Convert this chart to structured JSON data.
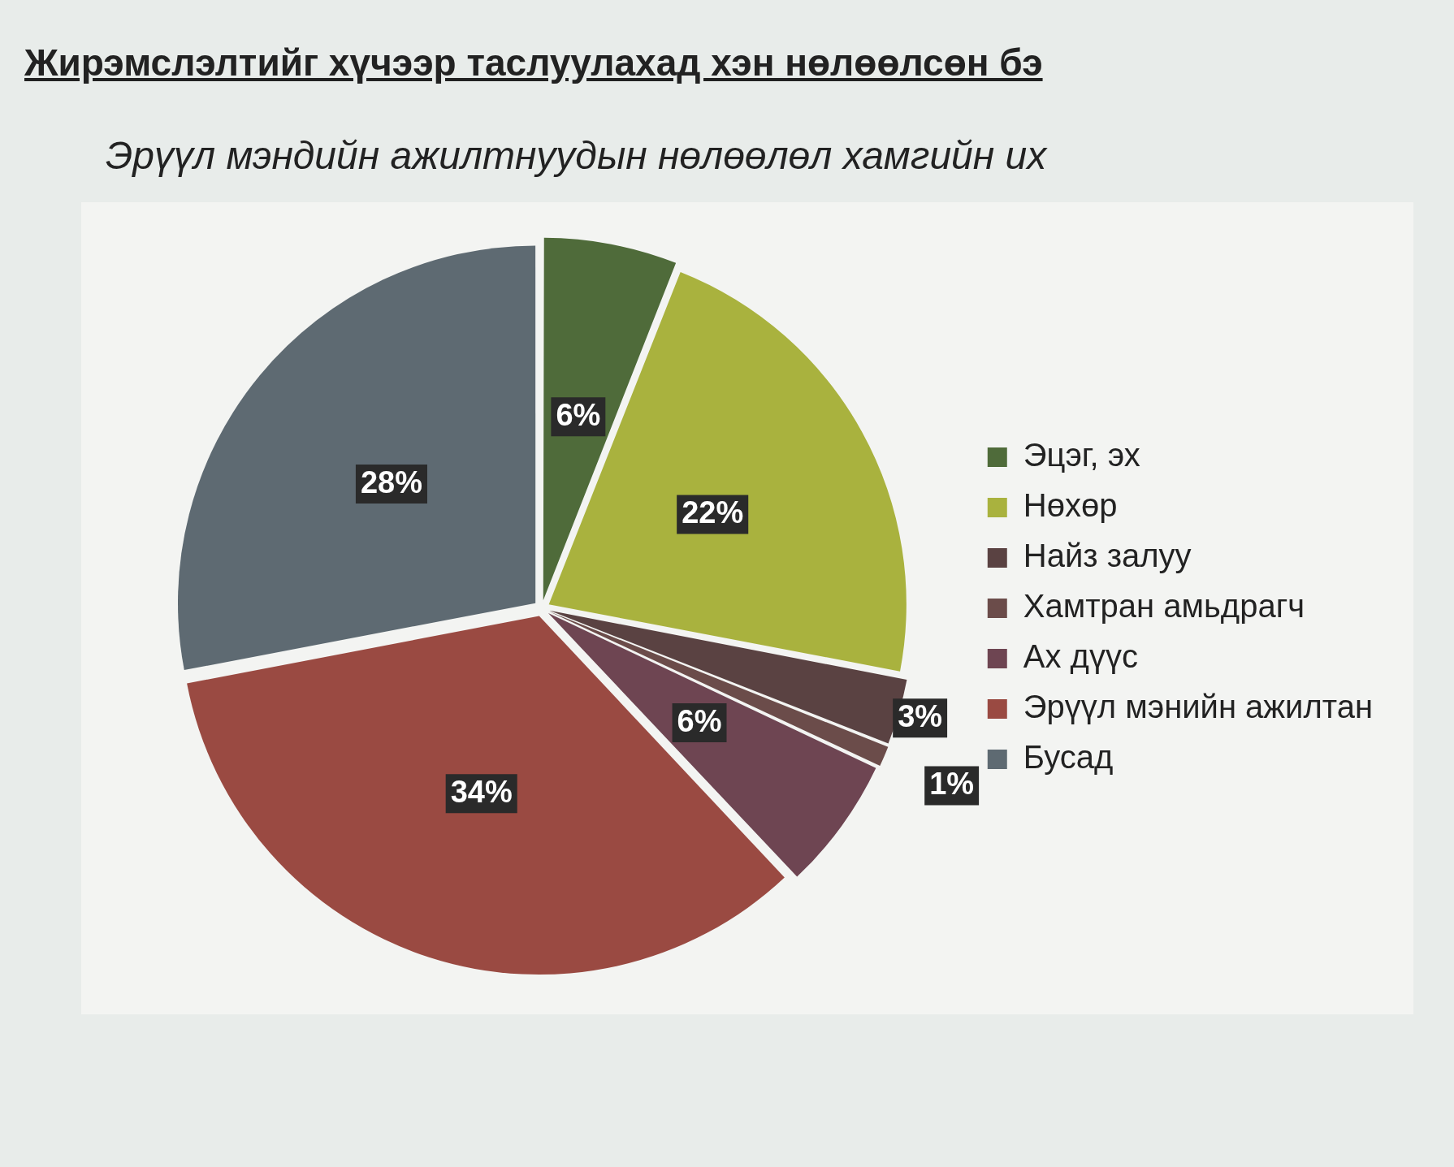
{
  "chart_data": {
    "type": "pie",
    "title": "Жирэмслэлтийг хүчээр таслуулахад хэн нөлөөлсөн бэ",
    "subtitle": "Эрүүл мэндийн ажилтнуудын нөлөөлөл хамгийн их",
    "categories": [
      "Эцэг, эх",
      "Нөхөр",
      "Найз залуу",
      "Хамтран амьдрагч",
      "Ах дүүс",
      "Эрүүл мэнийн ажилтан",
      "Бусад"
    ],
    "values": [
      6,
      22,
      3,
      1,
      6,
      34,
      28
    ],
    "value_labels": [
      "6%",
      "22%",
      "3%",
      "1%",
      "6%",
      "34%",
      "28%"
    ],
    "colors": [
      "#4f6b3a",
      "#a9b23e",
      "#5a4242",
      "#6b4c4a",
      "#6e4552",
      "#9a4a42",
      "#5e6a72"
    ],
    "legend": "right"
  }
}
